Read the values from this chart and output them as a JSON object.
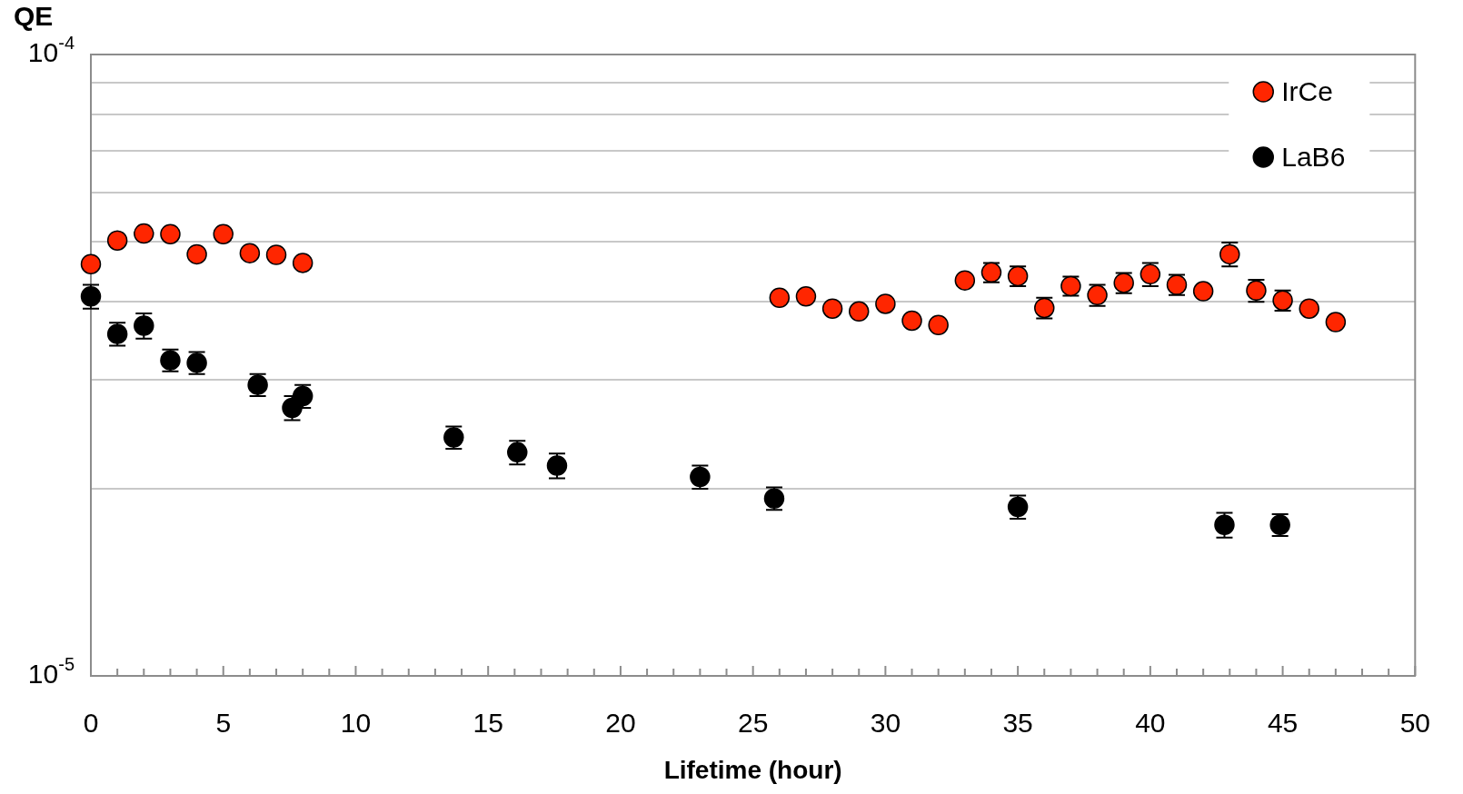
{
  "chart_data": {
    "type": "scatter",
    "xlabel": "Lifetime (hour)",
    "ylabel": "QE",
    "xlim": [
      0,
      50
    ],
    "xticks": [
      0,
      {
        "value": 1,
        "label": null
      },
      {
        "value": 2,
        "label": null
      },
      {
        "value": 3,
        "label": null
      },
      {
        "value": 4,
        "label": null
      },
      5,
      {
        "value": 6,
        "label": null
      },
      {
        "value": 7,
        "label": null
      },
      {
        "value": 8,
        "label": null
      },
      {
        "value": 9,
        "label": null
      },
      10,
      {
        "value": 11,
        "label": null
      },
      {
        "value": 12,
        "label": null
      },
      {
        "value": 13,
        "label": null
      },
      {
        "value": 14,
        "label": null
      },
      15,
      {
        "value": 16,
        "label": null
      },
      {
        "value": 17,
        "label": null
      },
      {
        "value": 18,
        "label": null
      },
      {
        "value": 19,
        "label": null
      },
      20,
      {
        "value": 21,
        "label": null
      },
      {
        "value": 22,
        "label": null
      },
      {
        "value": 23,
        "label": null
      },
      {
        "value": 24,
        "label": null
      },
      25,
      {
        "value": 26,
        "label": null
      },
      {
        "value": 27,
        "label": null
      },
      {
        "value": 28,
        "label": null
      },
      {
        "value": 29,
        "label": null
      },
      30,
      {
        "value": 31,
        "label": null
      },
      {
        "value": 32,
        "label": null
      },
      {
        "value": 33,
        "label": null
      },
      {
        "value": 34,
        "label": null
      },
      35,
      {
        "value": 36,
        "label": null
      },
      {
        "value": 37,
        "label": null
      },
      {
        "value": 38,
        "label": null
      },
      {
        "value": 39,
        "label": null
      },
      40,
      {
        "value": 41,
        "label": null
      },
      {
        "value": 42,
        "label": null
      },
      {
        "value": 43,
        "label": null
      },
      {
        "value": 44,
        "label": null
      },
      45,
      {
        "value": 46,
        "label": null
      },
      {
        "value": 47,
        "label": null
      },
      {
        "value": 48,
        "label": null
      },
      {
        "value": 49,
        "label": null
      },
      50
    ],
    "ylim": [
      1e-05,
      0.0001
    ],
    "yticks": [
      {
        "value": 1e-05,
        "label": "10$^{-5}$"
      },
      {
        "value": 2e-05,
        "label": null
      },
      {
        "value": 3e-05,
        "label": null
      },
      {
        "value": 4e-05,
        "label": null
      },
      {
        "value": 5e-05,
        "label": null
      },
      {
        "value": 6e-05,
        "label": null
      },
      {
        "value": 7e-05,
        "label": null
      },
      {
        "value": 8e-05,
        "label": null
      },
      {
        "value": 9e-05,
        "label": null
      },
      {
        "value": 0.0001,
        "label": "10$^{-4}$"
      }
    ],
    "log": "y",
    "grid": "y",
    "legend": "top right",
    "marker": "circle",
    "series": [
      {
        "name": "IrCe",
        "color": "#ff2600",
        "x": [
          0,
          1,
          2,
          3,
          4,
          5,
          6,
          7,
          8,
          26,
          27,
          28,
          29,
          30,
          31,
          32,
          33,
          34,
          35,
          36,
          37,
          38,
          39,
          40,
          41,
          42,
          43,
          44,
          45,
          46,
          47
        ],
        "values": [
          4.6e-05,
          5.02e-05,
          5.15e-05,
          5.14e-05,
          4.77e-05,
          5.14e-05,
          4.79e-05,
          4.76e-05,
          4.62e-05,
          4.06e-05,
          4.08e-05,
          3.9e-05,
          3.86e-05,
          3.97e-05,
          3.73e-05,
          3.67e-05,
          4.33e-05,
          4.46e-05,
          4.4e-05,
          3.91e-05,
          4.24e-05,
          4.1e-05,
          4.29e-05,
          4.43e-05,
          4.26e-05,
          4.16e-05,
          4.77e-05,
          4.17e-05,
          4.02e-05,
          3.9e-05,
          3.71e-05
        ],
        "errors": [
          null,
          null,
          null,
          null,
          null,
          null,
          null,
          null,
          null,
          null,
          null,
          null,
          null,
          null,
          null,
          null,
          null,
          1.6e-06,
          1.6e-06,
          1.5e-06,
          1.5e-06,
          1.6e-06,
          1.6e-06,
          1.9e-06,
          1.6e-06,
          null,
          2.1e-06,
          1.7e-06,
          1.5e-06,
          null,
          null
        ]
      },
      {
        "name": "LaB6",
        "color": "#000000",
        "x": [
          0,
          1,
          2,
          3,
          4,
          6.3,
          7.6,
          8,
          13.7,
          16.1,
          17.6,
          23,
          25.8,
          35,
          42.8,
          44.9
        ],
        "values": [
          4.08e-05,
          3.55e-05,
          3.66e-05,
          3.22e-05,
          3.19e-05,
          2.94e-05,
          2.7e-05,
          2.82e-05,
          2.42e-05,
          2.29e-05,
          2.18e-05,
          2.09e-05,
          1.93e-05,
          1.87e-05,
          1.75e-05,
          1.75e-05
        ],
        "errors": [
          1.8e-06,
          1.5e-06,
          1.7e-06,
          1.3e-06,
          1.3e-06,
          1.2e-06,
          1.2e-06,
          1.2e-06,
          1e-06,
          1e-06,
          1e-06,
          9e-07,
          8e-07,
          8e-07,
          8e-07,
          7e-07
        ]
      }
    ]
  }
}
